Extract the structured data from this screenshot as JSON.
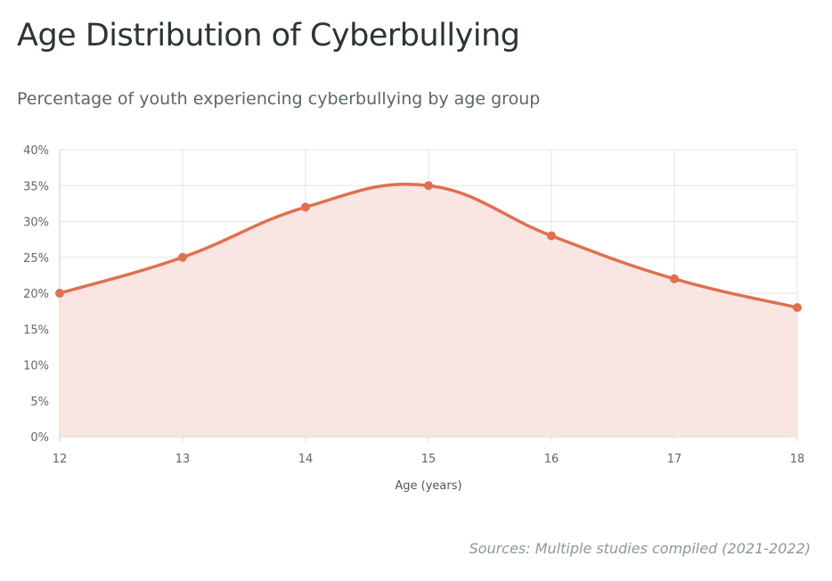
{
  "title": "Age Distribution of Cyberbullying",
  "subtitle": "Percentage of youth experiencing cyberbullying by age group",
  "source": "Sources: Multiple studies compiled (2021-2022)",
  "chart_data": {
    "type": "area",
    "categories": [
      "12",
      "13",
      "14",
      "15",
      "16",
      "17",
      "18"
    ],
    "values": [
      20,
      25,
      32,
      35,
      28,
      22,
      18
    ],
    "xlabel": "Age (years)",
    "ylabel": "",
    "ylim": [
      0,
      40
    ],
    "yticks": [
      "0%",
      "5%",
      "10%",
      "15%",
      "20%",
      "25%",
      "30%",
      "35%",
      "40%"
    ],
    "grid": true,
    "legend": "none",
    "line_color": "#e07050",
    "fill_color": "#f8e0dc"
  }
}
